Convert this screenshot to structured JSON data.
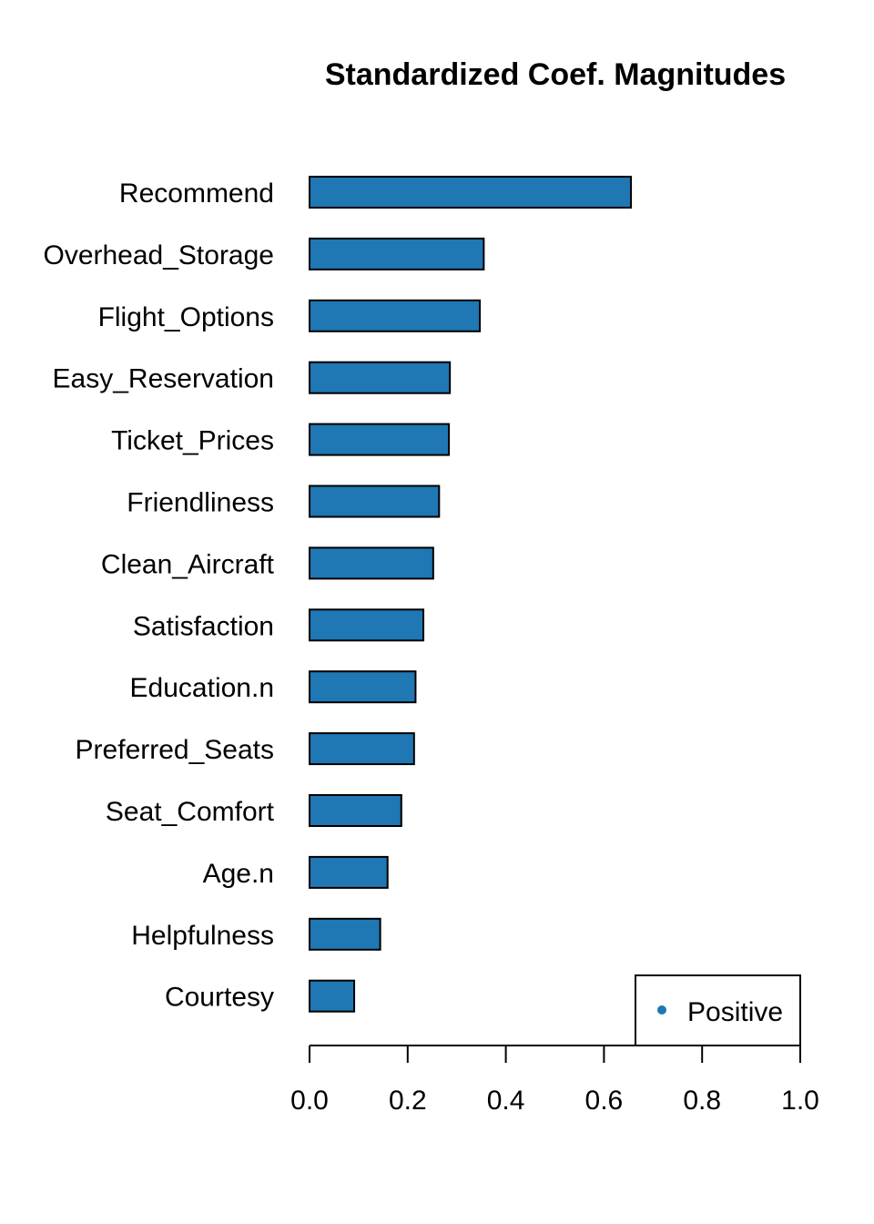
{
  "chart_data": {
    "type": "bar",
    "orientation": "horizontal",
    "title": "Standardized Coef. Magnitudes",
    "xlabel": "",
    "ylabel": "",
    "xlim": [
      0,
      1.0
    ],
    "ticks": [
      "0.0",
      "0.2",
      "0.4",
      "0.6",
      "0.8",
      "1.0"
    ],
    "tick_values": [
      0,
      0.2,
      0.4,
      0.6,
      0.8,
      1.0
    ],
    "categories": [
      "Recommend",
      "Overhead_Storage",
      "Flight_Options",
      "Easy_Reservation",
      "Ticket_Prices",
      "Friendliness",
      "Clean_Aircraft",
      "Satisfaction",
      "Education.n",
      "Preferred_Seats",
      "Seat_Comfort",
      "Age.n",
      "Helpfulness",
      "Courtesy"
    ],
    "series": [
      {
        "name": "Positive",
        "color": "#1f77b4",
        "values": [
          0.655,
          0.355,
          0.347,
          0.286,
          0.284,
          0.264,
          0.252,
          0.232,
          0.216,
          0.213,
          0.187,
          0.159,
          0.144,
          0.091
        ]
      }
    ],
    "grid": false,
    "legend": {
      "position": "bottom-right",
      "entries": [
        {
          "label": "Positive",
          "color": "#1f77b4",
          "marker": "dot"
        }
      ]
    }
  }
}
